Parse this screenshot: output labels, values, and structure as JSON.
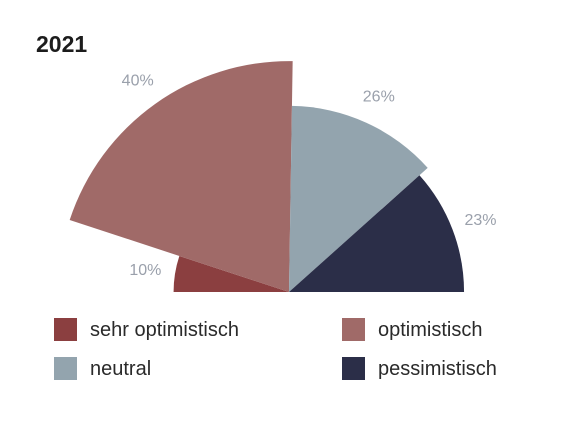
{
  "chart_data": {
    "type": "pie",
    "subtype": "semicircle-rose",
    "title": "2021",
    "categories": [
      "sehr optimistisch",
      "optimistisch",
      "neutral",
      "pessimistisch"
    ],
    "values": [
      10,
      40,
      26,
      23
    ],
    "value_labels": [
      "10%",
      "40%",
      "26%",
      "23%"
    ],
    "colors": [
      "#8b3f40",
      "#a06a68",
      "#93a4ae",
      "#2b2e48"
    ],
    "legend_position": "bottom",
    "grid": false
  },
  "colors": {
    "title": "#1c1c1c",
    "value_label": "#9aa0ab",
    "legend_text": "#2a2a2a",
    "background": "#ffffff"
  }
}
